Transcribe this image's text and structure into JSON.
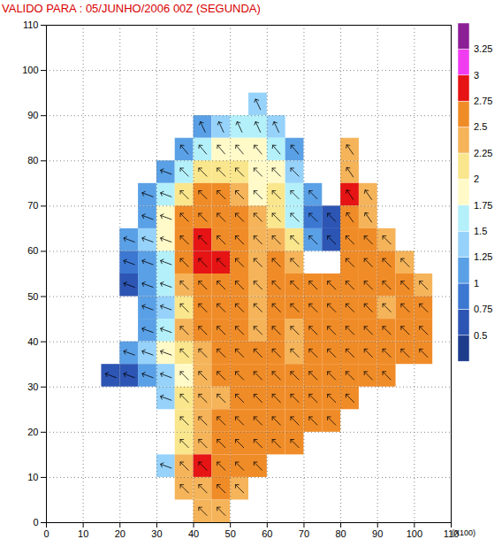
{
  "chart_data": {
    "type": "heatmap",
    "title": "VALIDO PARA : 05/JUNHO/2006 00Z (SEGUNDA)",
    "xlabel": "(X100)",
    "xlim": [
      0,
      110
    ],
    "ylim": [
      0,
      110
    ],
    "xticks": [
      0,
      10,
      20,
      30,
      40,
      50,
      60,
      70,
      80,
      90,
      100,
      110
    ],
    "yticks": [
      0,
      10,
      20,
      30,
      40,
      50,
      60,
      70,
      80,
      90,
      100,
      110
    ],
    "grid": true,
    "x_edges": [
      0,
      5,
      10,
      15,
      20,
      25,
      30,
      35,
      40,
      45,
      50,
      55,
      60,
      65,
      70,
      75,
      80,
      85,
      90,
      95,
      100,
      105,
      110
    ],
    "y_edges": [
      110,
      105,
      100,
      95,
      90,
      85,
      80,
      75,
      70,
      65,
      60,
      55,
      50,
      45,
      40,
      35,
      30,
      25,
      20,
      15,
      10,
      5,
      0
    ],
    "values": [
      [
        null,
        null,
        null,
        null,
        null,
        null,
        null,
        null,
        null,
        null,
        null,
        null,
        null,
        null,
        null,
        null,
        null,
        null,
        null,
        null,
        null,
        null
      ],
      [
        null,
        null,
        null,
        null,
        null,
        null,
        null,
        null,
        null,
        null,
        null,
        null,
        null,
        null,
        null,
        null,
        null,
        null,
        null,
        null,
        null,
        null
      ],
      [
        null,
        null,
        null,
        null,
        null,
        null,
        null,
        null,
        null,
        null,
        null,
        null,
        null,
        null,
        null,
        null,
        null,
        null,
        null,
        null,
        null,
        null
      ],
      [
        null,
        null,
        null,
        null,
        null,
        null,
        null,
        null,
        null,
        null,
        null,
        1.4,
        null,
        null,
        null,
        null,
        null,
        null,
        null,
        null,
        null,
        null
      ],
      [
        null,
        null,
        null,
        null,
        null,
        null,
        null,
        null,
        1.1,
        1.4,
        1.6,
        1.6,
        1.4,
        null,
        null,
        null,
        null,
        null,
        null,
        null,
        null,
        null
      ],
      [
        null,
        null,
        null,
        null,
        null,
        null,
        null,
        1.1,
        1.6,
        1.9,
        1.9,
        1.9,
        1.6,
        1.1,
        null,
        null,
        2.4,
        null,
        null,
        null,
        null,
        null
      ],
      [
        null,
        null,
        null,
        null,
        null,
        null,
        1.1,
        1.6,
        2.1,
        2.1,
        2.1,
        1.9,
        1.9,
        1.4,
        null,
        null,
        2.4,
        null,
        null,
        null,
        null,
        null
      ],
      [
        null,
        null,
        null,
        null,
        null,
        1.1,
        1.6,
        2.1,
        2.6,
        2.6,
        2.4,
        1.9,
        2.1,
        1.6,
        1.1,
        null,
        2.8,
        2.4,
        null,
        null,
        null,
        null
      ],
      [
        null,
        null,
        null,
        null,
        null,
        1.1,
        1.9,
        2.6,
        2.6,
        2.6,
        2.6,
        2.4,
        2.1,
        1.6,
        0.9,
        0.6,
        2.6,
        2.4,
        null,
        null,
        null,
        null
      ],
      [
        null,
        null,
        null,
        null,
        1.1,
        1.4,
        1.9,
        2.6,
        2.8,
        2.6,
        2.6,
        2.4,
        2.4,
        2.1,
        1.1,
        0.6,
        2.6,
        2.6,
        2.4,
        null,
        null,
        null
      ],
      [
        null,
        null,
        null,
        null,
        0.9,
        1.1,
        1.6,
        2.6,
        2.8,
        2.8,
        2.6,
        2.4,
        2.6,
        2.4,
        null,
        null,
        2.6,
        2.6,
        2.6,
        2.4,
        null,
        null
      ],
      [
        null,
        null,
        null,
        null,
        0.6,
        1.1,
        1.6,
        2.4,
        2.6,
        2.6,
        2.6,
        2.4,
        2.6,
        2.6,
        2.6,
        2.6,
        2.6,
        2.6,
        2.6,
        2.6,
        2.4,
        null
      ],
      [
        null,
        null,
        null,
        null,
        null,
        1.1,
        1.4,
        2.1,
        2.6,
        2.6,
        2.6,
        2.4,
        2.6,
        2.6,
        2.6,
        2.6,
        2.6,
        2.6,
        2.4,
        2.6,
        2.6,
        null
      ],
      [
        null,
        null,
        null,
        null,
        null,
        1.1,
        1.6,
        2.4,
        2.6,
        2.6,
        2.6,
        2.4,
        2.6,
        2.4,
        2.6,
        2.6,
        2.6,
        2.6,
        2.6,
        2.6,
        2.6,
        null
      ],
      [
        null,
        null,
        null,
        null,
        1.1,
        1.4,
        1.9,
        2.1,
        2.4,
        2.6,
        2.6,
        2.6,
        2.6,
        2.4,
        2.6,
        2.6,
        2.6,
        2.6,
        2.6,
        2.6,
        2.6,
        null
      ],
      [
        null,
        null,
        null,
        0.6,
        0.6,
        1.1,
        1.4,
        1.9,
        2.4,
        2.6,
        2.6,
        2.6,
        2.6,
        2.6,
        2.6,
        2.6,
        2.6,
        2.6,
        2.6,
        null,
        null,
        null
      ],
      [
        null,
        null,
        null,
        null,
        null,
        null,
        1.4,
        2.1,
        2.4,
        2.4,
        2.6,
        2.6,
        2.6,
        2.6,
        2.6,
        2.6,
        2.6,
        null,
        null,
        null,
        null,
        null
      ],
      [
        null,
        null,
        null,
        null,
        null,
        null,
        null,
        2.1,
        2.4,
        2.6,
        2.6,
        2.6,
        2.6,
        2.6,
        2.6,
        2.6,
        null,
        null,
        null,
        null,
        null,
        null
      ],
      [
        null,
        null,
        null,
        null,
        null,
        null,
        null,
        2.1,
        2.4,
        2.6,
        2.6,
        2.6,
        2.6,
        2.6,
        null,
        null,
        null,
        null,
        null,
        null,
        null,
        null
      ],
      [
        null,
        null,
        null,
        null,
        null,
        null,
        1.4,
        2.4,
        2.8,
        2.6,
        2.6,
        2.6,
        null,
        null,
        null,
        null,
        null,
        null,
        null,
        null,
        null,
        null
      ],
      [
        null,
        null,
        null,
        null,
        null,
        null,
        null,
        2.4,
        2.4,
        2.6,
        2.4,
        null,
        null,
        null,
        null,
        null,
        null,
        null,
        null,
        null,
        null,
        null
      ],
      [
        null,
        null,
        null,
        null,
        null,
        null,
        null,
        null,
        2.4,
        2.4,
        null,
        null,
        null,
        null,
        null,
        null,
        null,
        null,
        null,
        null,
        null,
        null
      ]
    ],
    "directions": [
      [
        null,
        null,
        null,
        null,
        null,
        null,
        null,
        null,
        null,
        null,
        null,
        null,
        null,
        null,
        null,
        null,
        null,
        null,
        null,
        null,
        null,
        null
      ],
      [
        null,
        null,
        null,
        null,
        null,
        null,
        null,
        null,
        null,
        null,
        null,
        null,
        null,
        null,
        null,
        null,
        null,
        null,
        null,
        null,
        null,
        null
      ],
      [
        null,
        null,
        null,
        null,
        null,
        null,
        null,
        null,
        null,
        null,
        null,
        null,
        null,
        null,
        null,
        null,
        null,
        null,
        null,
        null,
        null,
        null
      ],
      [
        null,
        null,
        null,
        null,
        null,
        null,
        null,
        null,
        null,
        null,
        null,
        115,
        null,
        null,
        null,
        null,
        null,
        null,
        null,
        null,
        null,
        null
      ],
      [
        null,
        null,
        null,
        null,
        null,
        null,
        null,
        null,
        115,
        115,
        115,
        115,
        115,
        null,
        null,
        null,
        null,
        null,
        null,
        null,
        null,
        null
      ],
      [
        null,
        null,
        null,
        null,
        null,
        null,
        null,
        130,
        130,
        130,
        130,
        130,
        130,
        130,
        null,
        null,
        125,
        null,
        null,
        null,
        null,
        null
      ],
      [
        null,
        null,
        null,
        null,
        null,
        null,
        160,
        135,
        135,
        135,
        135,
        135,
        135,
        135,
        null,
        null,
        125,
        null,
        null,
        null,
        null,
        null
      ],
      [
        null,
        null,
        null,
        null,
        null,
        160,
        160,
        135,
        135,
        135,
        135,
        135,
        135,
        135,
        135,
        null,
        125,
        125,
        null,
        null,
        null,
        null
      ],
      [
        null,
        null,
        null,
        null,
        null,
        160,
        160,
        135,
        135,
        135,
        135,
        135,
        135,
        135,
        135,
        135,
        125,
        125,
        null,
        null,
        null,
        null
      ],
      [
        null,
        null,
        null,
        null,
        160,
        160,
        160,
        135,
        135,
        135,
        135,
        135,
        135,
        135,
        135,
        135,
        135,
        135,
        135,
        null,
        null,
        null
      ],
      [
        null,
        null,
        null,
        null,
        160,
        160,
        160,
        135,
        135,
        135,
        135,
        135,
        135,
        135,
        null,
        null,
        135,
        135,
        135,
        135,
        null,
        null
      ],
      [
        null,
        null,
        null,
        null,
        160,
        160,
        160,
        135,
        135,
        135,
        135,
        135,
        135,
        135,
        135,
        135,
        135,
        135,
        135,
        135,
        135,
        null
      ],
      [
        null,
        null,
        null,
        null,
        null,
        160,
        160,
        135,
        135,
        135,
        135,
        135,
        135,
        135,
        135,
        135,
        135,
        135,
        135,
        135,
        135,
        null
      ],
      [
        null,
        null,
        null,
        null,
        null,
        160,
        160,
        135,
        135,
        135,
        135,
        135,
        135,
        135,
        135,
        135,
        135,
        135,
        135,
        135,
        135,
        null
      ],
      [
        null,
        null,
        null,
        null,
        160,
        160,
        160,
        135,
        135,
        135,
        135,
        135,
        135,
        135,
        135,
        135,
        135,
        135,
        135,
        135,
        135,
        null
      ],
      [
        null,
        null,
        null,
        160,
        160,
        160,
        160,
        135,
        135,
        135,
        135,
        135,
        135,
        135,
        135,
        135,
        135,
        135,
        135,
        null,
        null,
        null
      ],
      [
        null,
        null,
        null,
        null,
        null,
        null,
        160,
        135,
        135,
        135,
        135,
        135,
        135,
        135,
        135,
        135,
        135,
        null,
        null,
        null,
        null,
        null
      ],
      [
        null,
        null,
        null,
        null,
        null,
        null,
        null,
        135,
        135,
        135,
        135,
        135,
        135,
        135,
        135,
        135,
        null,
        null,
        null,
        null,
        null,
        null
      ],
      [
        null,
        null,
        null,
        null,
        null,
        null,
        null,
        135,
        135,
        135,
        135,
        135,
        135,
        135,
        null,
        null,
        null,
        null,
        null,
        null,
        null,
        null
      ],
      [
        null,
        null,
        null,
        null,
        null,
        null,
        160,
        135,
        135,
        135,
        135,
        135,
        null,
        null,
        null,
        null,
        null,
        null,
        null,
        null,
        null,
        null
      ],
      [
        null,
        null,
        null,
        null,
        null,
        null,
        null,
        135,
        135,
        135,
        135,
        null,
        null,
        null,
        null,
        null,
        null,
        null,
        null,
        null,
        null,
        null
      ],
      [
        null,
        null,
        null,
        null,
        null,
        null,
        null,
        null,
        135,
        135,
        null,
        null,
        null,
        null,
        null,
        null,
        null,
        null,
        null,
        null,
        null,
        null
      ]
    ],
    "colorbar": {
      "thresholds": [
        0.5,
        0.75,
        1,
        1.25,
        1.5,
        1.75,
        2,
        2.25,
        2.5,
        2.75,
        3,
        3.25
      ],
      "colors": [
        "#1e3c8c",
        "#2d55b4",
        "#3c78d2",
        "#5aa0e6",
        "#96d2fa",
        "#b4f0fa",
        "#fffac8",
        "#fae68c",
        "#f5b45a",
        "#f08c28",
        "#e61414",
        "#f03cf0",
        "#8c1e96"
      ]
    }
  }
}
